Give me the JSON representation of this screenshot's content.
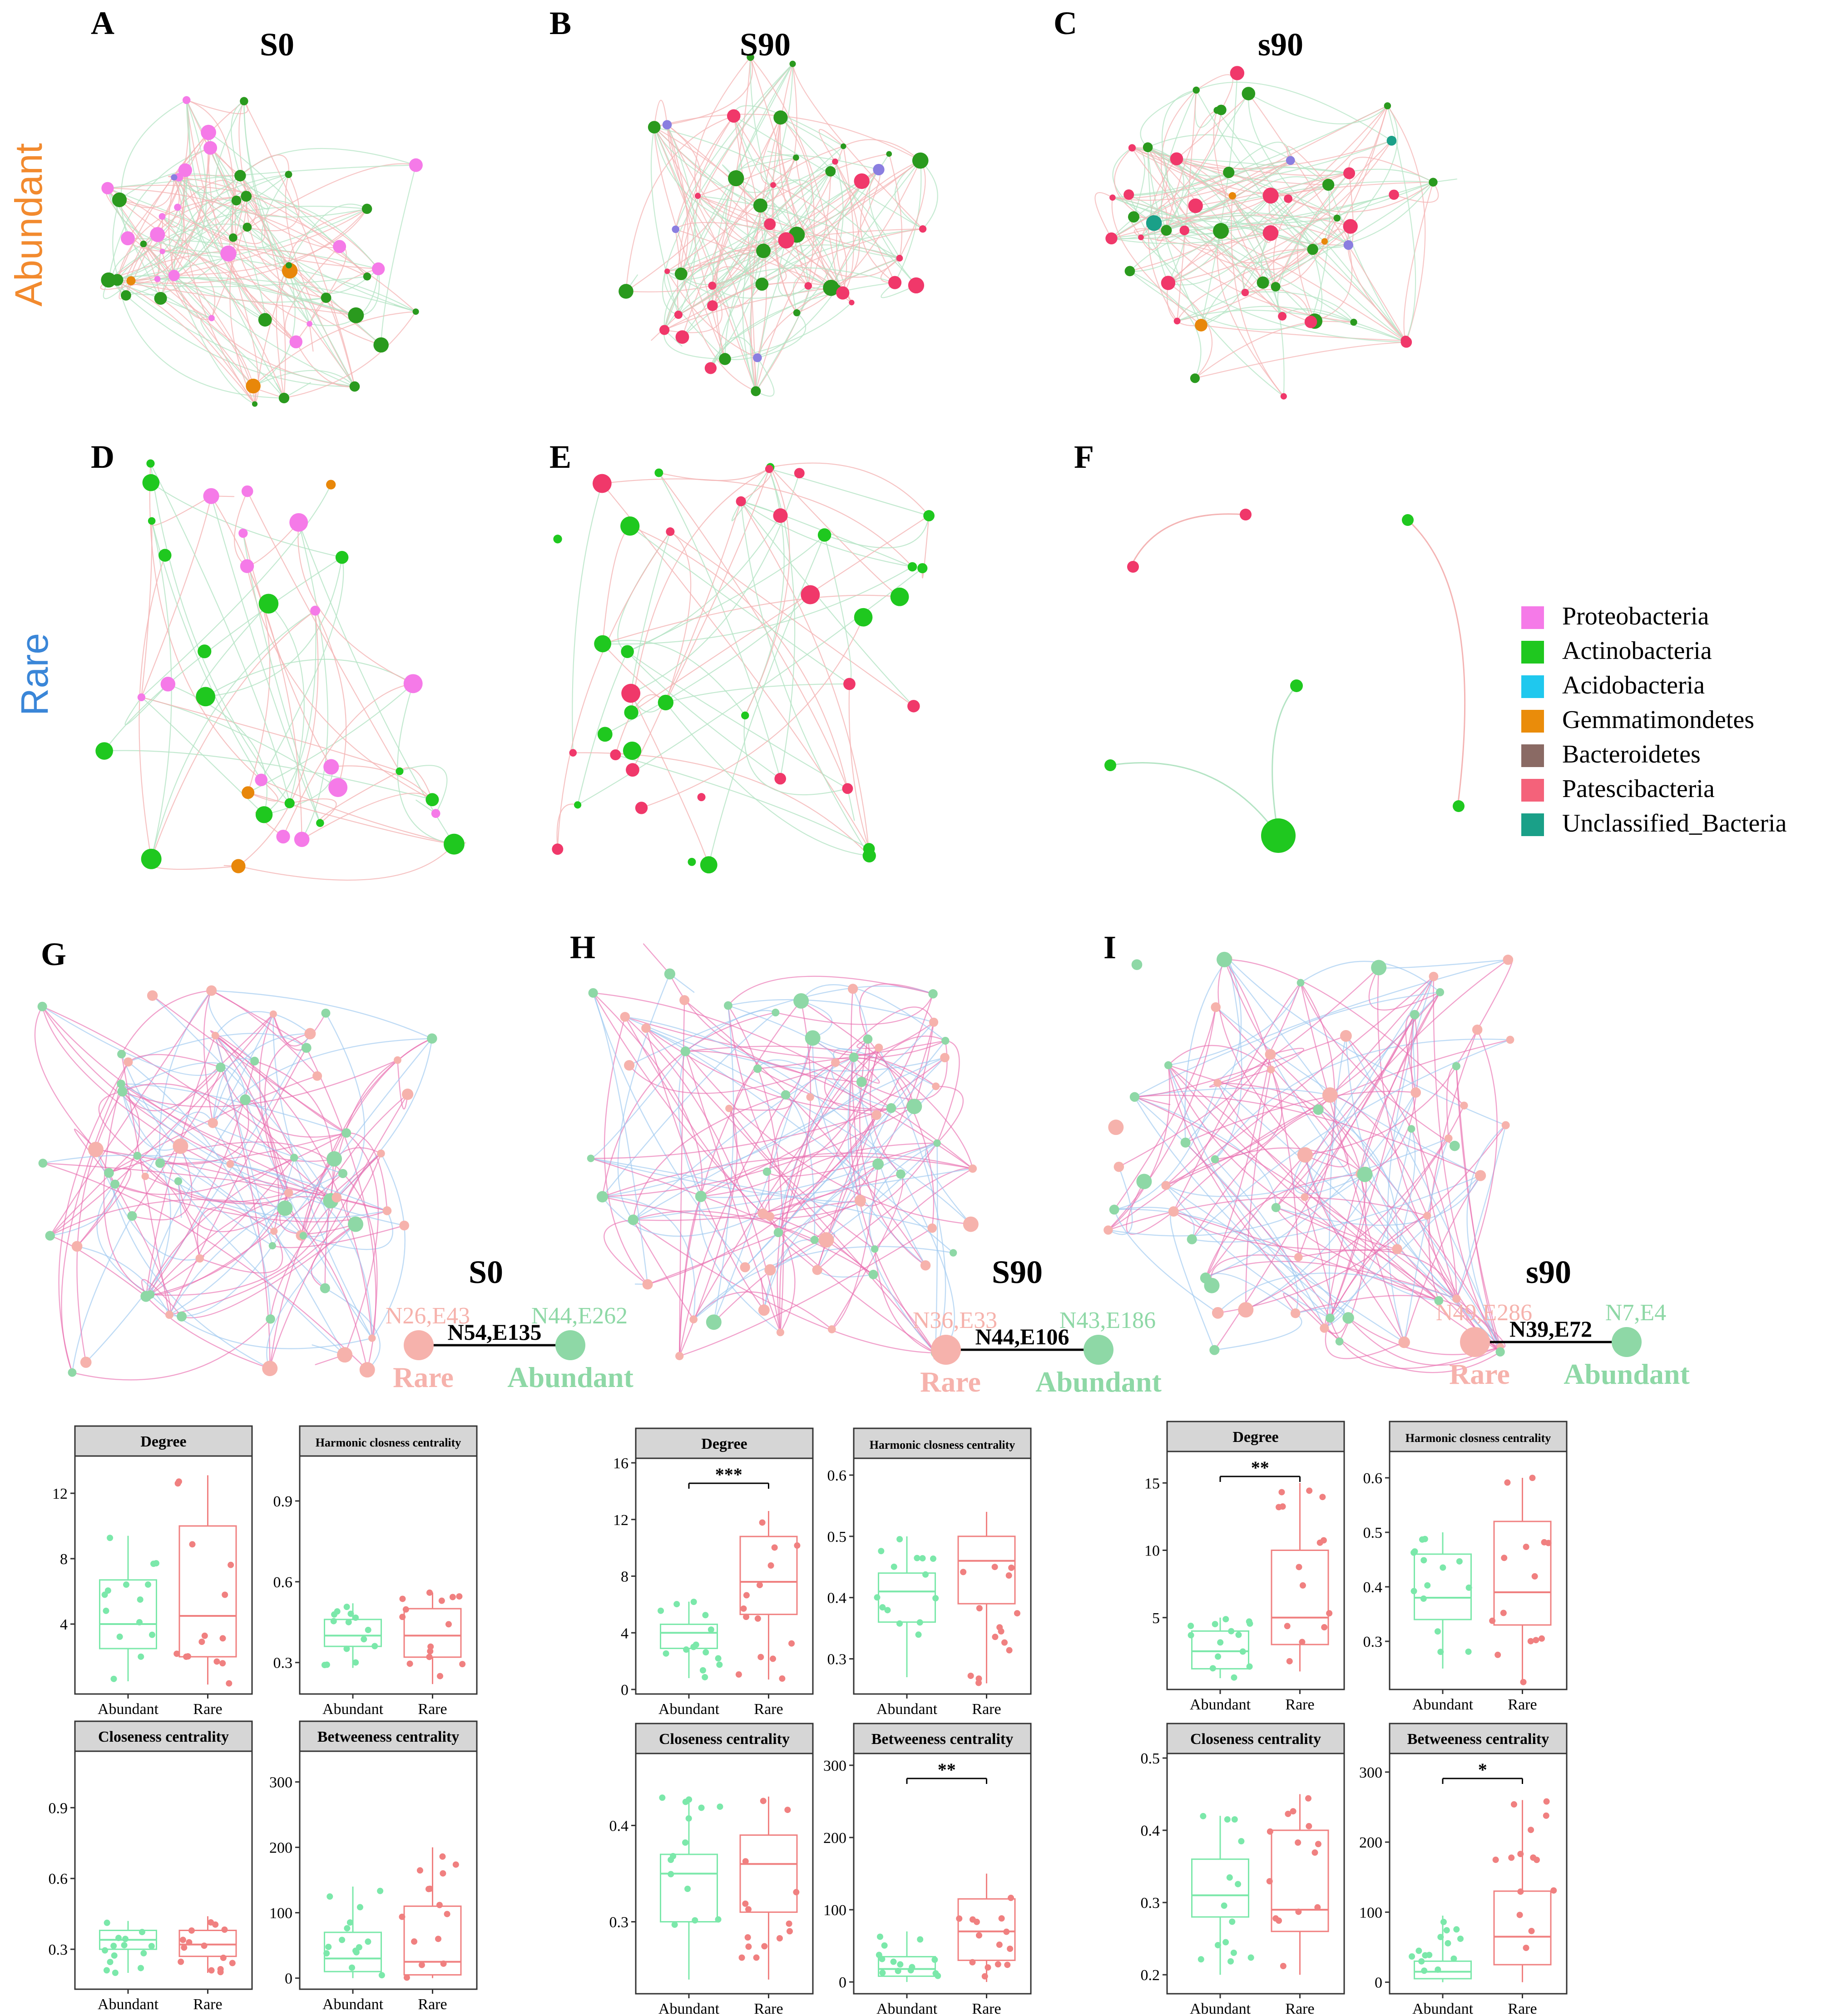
{
  "panel_letters": [
    "A",
    "B",
    "C",
    "D",
    "E",
    "F",
    "G",
    "H",
    "I"
  ],
  "row_labels": {
    "abundant": "Abundant",
    "rare": "Rare"
  },
  "colors": {
    "abundant_label": "#f28a2e",
    "rare_label": "#3a86d8",
    "proteobacteria": "#f57ae8",
    "actinobacteria": "#2a9a1e",
    "actinobacteria_rare": "#1fc81f",
    "acidobacteria": "#1fc8ee",
    "gemmatimondetes": "#e8870a",
    "bacteroidetes": "#8a6a64",
    "patescibacteria": "#f0386a",
    "unclassified": "#1aa088",
    "purple_node": "#8a7ee0",
    "net_rare": "#f6b2ac",
    "net_abundant": "#8ed8a6",
    "edge_red": "#f4b4b4",
    "edge_green": "#b4e4c4",
    "edge_pink": "#ea70b0",
    "edge_blue": "#9cc8f0",
    "box_green": "#7be8aa",
    "box_red": "#f08080",
    "strip": "#d6d6d6"
  },
  "networks": {
    "A": {
      "title": "S0"
    },
    "B": {
      "title": "S90"
    },
    "C": {
      "title": "s90"
    }
  },
  "legend": [
    {
      "label": "Proteobacteria",
      "color": "#f57ae8"
    },
    {
      "label": "Actinobacteria",
      "color": "#1fc81f"
    },
    {
      "label": "Acidobacteria",
      "color": "#1fc8ee"
    },
    {
      "label": "Gemmatimondetes",
      "color": "#ea8c0a"
    },
    {
      "label": "Bacteroidetes",
      "color": "#8a6a64"
    },
    {
      "label": "Patescibacteria",
      "color": "#f4627a"
    },
    {
      "label": "Unclassified_Bacteria",
      "color": "#1aa088"
    }
  ],
  "cooccurrence": {
    "G": {
      "title": "S0",
      "rare_stats": "N26,E43",
      "link_stats": "N54,E135",
      "abundant_stats": "N44,E262",
      "rare_label": "Rare",
      "abundant_label": "Abundant"
    },
    "H": {
      "title": "S90",
      "rare_stats": "N36,E33",
      "link_stats": "N44,E106",
      "abundant_stats": "N43,E186",
      "rare_label": "Rare",
      "abundant_label": "Abundant"
    },
    "I": {
      "title": "s90",
      "rare_stats": "N49,E286",
      "link_stats": "N39,E72",
      "abundant_stats": "N7,E4",
      "rare_label": "Rare",
      "abundant_label": "Abundant"
    }
  },
  "chart_data": [
    {
      "type": "box",
      "panel": "G",
      "title": "Degree",
      "categories": [
        "Abundant",
        "Rare"
      ],
      "yticks": [
        "4",
        "8",
        "12"
      ],
      "ylim": [
        0,
        14
      ],
      "boxes": [
        {
          "q1": 2.5,
          "median": 4,
          "q3": 6.7,
          "lo": 0.5,
          "hi": 9.4
        },
        {
          "q1": 2,
          "median": 4.5,
          "q3": 10,
          "lo": 0.3,
          "hi": 13.1
        }
      ],
      "significance": ""
    },
    {
      "type": "box",
      "panel": "G",
      "title": "Harmonic closness centrality",
      "categories": [
        "Abundant",
        "Rare"
      ],
      "yticks": [
        "0.3",
        "0.6",
        "0.9"
      ],
      "ylim": [
        0.2,
        1.05
      ],
      "boxes": [
        {
          "q1": 0.36,
          "median": 0.4,
          "q3": 0.46,
          "lo": 0.28,
          "hi": 0.52
        },
        {
          "q1": 0.32,
          "median": 0.4,
          "q3": 0.5,
          "lo": 0.22,
          "hi": 0.56
        }
      ],
      "significance": ""
    },
    {
      "type": "box",
      "panel": "G",
      "title": "Closeness centrality",
      "categories": [
        "Abundant",
        "Rare"
      ],
      "yticks": [
        "0.3",
        "0.6",
        "0.9"
      ],
      "ylim": [
        0.15,
        1.12
      ],
      "boxes": [
        {
          "q1": 0.3,
          "median": 0.34,
          "q3": 0.38,
          "lo": 0.2,
          "hi": 0.42
        },
        {
          "q1": 0.27,
          "median": 0.32,
          "q3": 0.38,
          "lo": 0.2,
          "hi": 0.44
        }
      ],
      "significance": ""
    },
    {
      "type": "box",
      "panel": "G",
      "title": "Betweeness centrality",
      "categories": [
        "Abundant",
        "Rare"
      ],
      "yticks": [
        "0",
        "100",
        "200",
        "300"
      ],
      "ylim": [
        -10,
        340
      ],
      "boxes": [
        {
          "q1": 10,
          "median": 30,
          "q3": 70,
          "lo": 0,
          "hi": 140
        },
        {
          "q1": 5,
          "median": 25,
          "q3": 110,
          "lo": 0,
          "hi": 200
        }
      ],
      "significance": ""
    },
    {
      "type": "box",
      "panel": "H",
      "title": "Degree",
      "categories": [
        "Abundant",
        "Rare"
      ],
      "yticks": [
        "0",
        "4",
        "8",
        "12",
        "16"
      ],
      "ylim": [
        0,
        16
      ],
      "boxes": [
        {
          "q1": 2.9,
          "median": 4,
          "q3": 4.6,
          "lo": 0.8,
          "hi": 6.2
        },
        {
          "q1": 5.3,
          "median": 7.6,
          "q3": 10.8,
          "lo": 0.7,
          "hi": 12.6
        }
      ],
      "significance": "***"
    },
    {
      "type": "box",
      "panel": "H",
      "title": "Harmonic closness centrality",
      "categories": [
        "Abundant",
        "Rare"
      ],
      "yticks": [
        "0.3",
        "0.4",
        "0.5",
        "0.6"
      ],
      "ylim": [
        0.25,
        0.62
      ],
      "boxes": [
        {
          "q1": 0.36,
          "median": 0.41,
          "q3": 0.44,
          "lo": 0.27,
          "hi": 0.5
        },
        {
          "q1": 0.39,
          "median": 0.46,
          "q3": 0.5,
          "lo": 0.26,
          "hi": 0.54
        }
      ],
      "significance": ""
    },
    {
      "type": "box",
      "panel": "H",
      "title": "Closeness centrality",
      "categories": [
        "Abundant",
        "Rare"
      ],
      "yticks": [
        "0.3",
        "0.4"
      ],
      "ylim": [
        0.23,
        0.47
      ],
      "boxes": [
        {
          "q1": 0.3,
          "median": 0.35,
          "q3": 0.37,
          "lo": 0.24,
          "hi": 0.43
        },
        {
          "q1": 0.31,
          "median": 0.36,
          "q3": 0.39,
          "lo": 0.24,
          "hi": 0.43
        }
      ],
      "significance": ""
    },
    {
      "type": "box",
      "panel": "H",
      "title": "Betweeness centrality",
      "categories": [
        "Abundant",
        "Rare"
      ],
      "yticks": [
        "0",
        "100",
        "200",
        "300"
      ],
      "ylim": [
        -10,
        310
      ],
      "boxes": [
        {
          "q1": 8,
          "median": 18,
          "q3": 35,
          "lo": 0,
          "hi": 70
        },
        {
          "q1": 30,
          "median": 70,
          "q3": 115,
          "lo": 0,
          "hi": 150
        }
      ],
      "significance": "**"
    },
    {
      "type": "box",
      "panel": "I",
      "title": "Degree",
      "categories": [
        "Abundant",
        "Rare"
      ],
      "yticks": [
        "5",
        "10",
        "15"
      ],
      "ylim": [
        0,
        17
      ],
      "boxes": [
        {
          "q1": 1.2,
          "median": 2.5,
          "q3": 4,
          "lo": 0.5,
          "hi": 5
        },
        {
          "q1": 3,
          "median": 5,
          "q3": 10,
          "lo": 1,
          "hi": 15
        }
      ],
      "significance": "**"
    },
    {
      "type": "box",
      "panel": "I",
      "title": "Harmonic closness centrality",
      "categories": [
        "Abundant",
        "Rare"
      ],
      "yticks": [
        "0.3",
        "0.4",
        "0.5",
        "0.6"
      ],
      "ylim": [
        0.22,
        0.64
      ],
      "boxes": [
        {
          "q1": 0.34,
          "median": 0.38,
          "q3": 0.46,
          "lo": 0.25,
          "hi": 0.5
        },
        {
          "q1": 0.33,
          "median": 0.39,
          "q3": 0.52,
          "lo": 0.22,
          "hi": 0.6
        }
      ],
      "significance": ""
    },
    {
      "type": "box",
      "panel": "I",
      "title": "Closeness centrality",
      "categories": [
        "Abundant",
        "Rare"
      ],
      "yticks": [
        "0.2",
        "0.3",
        "0.4",
        "0.5"
      ],
      "ylim": [
        0.18,
        0.5
      ],
      "boxes": [
        {
          "q1": 0.28,
          "median": 0.31,
          "q3": 0.36,
          "lo": 0.2,
          "hi": 0.42
        },
        {
          "q1": 0.26,
          "median": 0.29,
          "q3": 0.4,
          "lo": 0.2,
          "hi": 0.45
        }
      ],
      "significance": ""
    },
    {
      "type": "box",
      "panel": "I",
      "title": "Betweeness centrality",
      "categories": [
        "Abundant",
        "Rare"
      ],
      "yticks": [
        "0",
        "100",
        "200",
        "300"
      ],
      "ylim": [
        -10,
        320
      ],
      "boxes": [
        {
          "q1": 5,
          "median": 15,
          "q3": 30,
          "lo": 0,
          "hi": 95
        },
        {
          "q1": 25,
          "median": 65,
          "q3": 130,
          "lo": 0,
          "hi": 260
        }
      ],
      "significance": "*"
    }
  ]
}
